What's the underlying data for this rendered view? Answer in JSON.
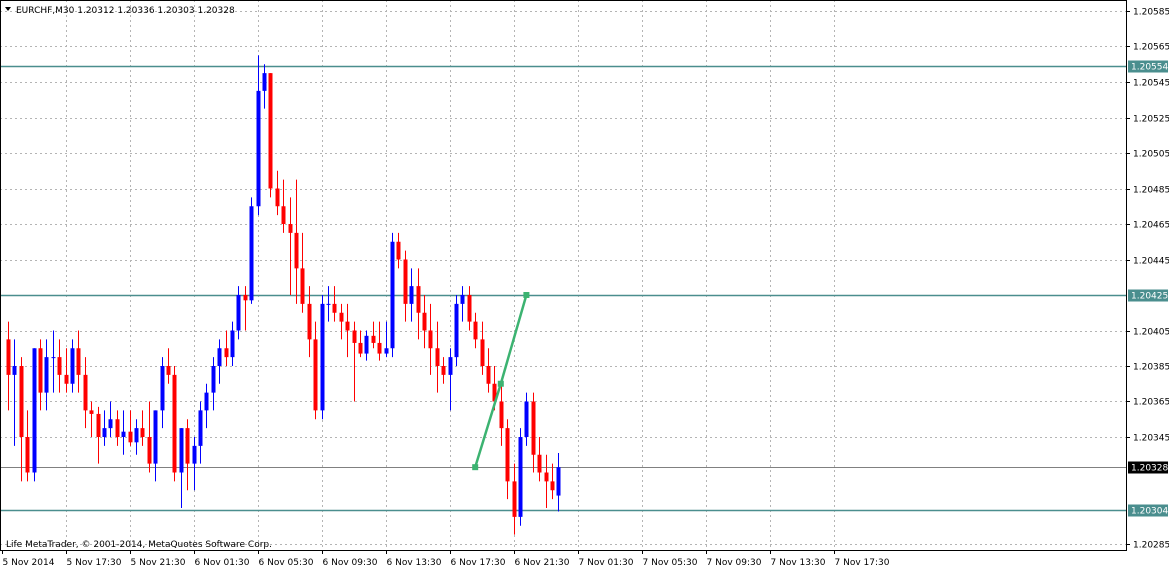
{
  "header": {
    "symbol_title": "EURCHF,M30  1.20312 1.20336 1.20303 1.20328",
    "copyright": "Life MetaTrader, © 2001-2014, MetaQuotes Software Corp."
  },
  "colors": {
    "bull": "#0000ff",
    "bear": "#ff0000",
    "hline": "#4a8e8e",
    "bid_line": "#808080",
    "projection": "#3cb371"
  },
  "chart_data": {
    "type": "candlestick",
    "symbol": "EURCHF",
    "timeframe": "M30",
    "ylim": [
      1.2028,
      1.2059
    ],
    "grid": true,
    "y_ticks": [
      "1.20585",
      "1.20565",
      "1.20545",
      "1.20525",
      "1.20505",
      "1.20485",
      "1.20465",
      "1.20445",
      "1.20425",
      "1.20405",
      "1.20385",
      "1.20365",
      "1.20345",
      "1.20328",
      "1.20304",
      "1.20285"
    ],
    "x_ticks": [
      "5 Nov 2014",
      "5 Nov 17:30",
      "5 Nov 21:30",
      "6 Nov 01:30",
      "6 Nov 05:30",
      "6 Nov 09:30",
      "6 Nov 13:30",
      "6 Nov 17:30",
      "6 Nov 21:30",
      "7 Nov 01:30",
      "7 Nov 05:30",
      "7 Nov 09:30",
      "7 Nov 13:30",
      "7 Nov 17:30"
    ],
    "horizontal_levels": [
      {
        "value": 1.20554,
        "label": "1.20554"
      },
      {
        "value": 1.20425,
        "label": "1.20425"
      },
      {
        "value": 1.20304,
        "label": "1.20304"
      }
    ],
    "bid": {
      "value": 1.20328,
      "label": "1.20328"
    },
    "projection": [
      {
        "bar": 73,
        "price": 1.20328
      },
      {
        "bar": 77,
        "price": 1.20375
      },
      {
        "bar": 81,
        "price": 1.20425
      }
    ],
    "candles": [
      [
        1.204,
        1.2041,
        1.2036,
        1.2038
      ],
      [
        1.2038,
        1.204,
        1.2034,
        1.20385
      ],
      [
        1.20385,
        1.2039,
        1.2032,
        1.20345
      ],
      [
        1.20345,
        1.2036,
        1.2032,
        1.20325
      ],
      [
        1.20325,
        1.20395,
        1.2032,
        1.20395
      ],
      [
        1.20395,
        1.204,
        1.2036,
        1.2037
      ],
      [
        1.2037,
        1.204,
        1.2036,
        1.2039
      ],
      [
        1.2039,
        1.20405,
        1.2037,
        1.2039
      ],
      [
        1.2039,
        1.204,
        1.2037,
        1.2038
      ],
      [
        1.2038,
        1.20395,
        1.2037,
        1.20375
      ],
      [
        1.20375,
        1.204,
        1.2037,
        1.20395
      ],
      [
        1.20395,
        1.20405,
        1.2037,
        1.2038
      ],
      [
        1.2038,
        1.2039,
        1.2035,
        1.2036
      ],
      [
        1.2036,
        1.20365,
        1.20345,
        1.20358
      ],
      [
        1.20358,
        1.20362,
        1.2033,
        1.20345
      ],
      [
        1.20345,
        1.2036,
        1.2034,
        1.2035
      ],
      [
        1.2035,
        1.20365,
        1.20345,
        1.20355
      ],
      [
        1.20355,
        1.2036,
        1.2034,
        1.20345
      ],
      [
        1.20345,
        1.2036,
        1.20335,
        1.20348
      ],
      [
        1.20348,
        1.2036,
        1.2034,
        1.20342
      ],
      [
        1.20342,
        1.20355,
        1.20335,
        1.2035
      ],
      [
        1.2035,
        1.2036,
        1.2034,
        1.20345
      ],
      [
        1.20345,
        1.20365,
        1.20325,
        1.2033
      ],
      [
        1.2033,
        1.2036,
        1.2032,
        1.2036
      ],
      [
        1.2036,
        1.2039,
        1.2035,
        1.20385
      ],
      [
        1.20385,
        1.20395,
        1.20375,
        1.2038
      ],
      [
        1.2038,
        1.20385,
        1.2032,
        1.20325
      ],
      [
        1.20325,
        1.2035,
        1.20305,
        1.2035
      ],
      [
        1.2035,
        1.20355,
        1.20315,
        1.2033
      ],
      [
        1.2033,
        1.20345,
        1.20315,
        1.2034
      ],
      [
        1.2034,
        1.20365,
        1.2033,
        1.2036
      ],
      [
        1.2036,
        1.20375,
        1.2035,
        1.2037
      ],
      [
        1.2037,
        1.2039,
        1.2036,
        1.20385
      ],
      [
        1.20385,
        1.204,
        1.20375,
        1.20395
      ],
      [
        1.20395,
        1.20405,
        1.20385,
        1.2039
      ],
      [
        1.2039,
        1.2041,
        1.20385,
        1.20405
      ],
      [
        1.20405,
        1.2043,
        1.204,
        1.20425
      ],
      [
        1.20425,
        1.2043,
        1.20405,
        1.20422
      ],
      [
        1.20422,
        1.2048,
        1.2042,
        1.20475
      ],
      [
        1.20475,
        1.2056,
        1.2047,
        1.2054
      ],
      [
        1.2054,
        1.20555,
        1.2053,
        1.2055
      ],
      [
        1.2055,
        1.2055,
        1.2048,
        1.20485
      ],
      [
        1.20485,
        1.20495,
        1.2047,
        1.20475
      ],
      [
        1.20475,
        1.2049,
        1.2046,
        1.20465
      ],
      [
        1.20465,
        1.2048,
        1.20425,
        1.2046
      ],
      [
        1.2046,
        1.2049,
        1.2042,
        1.2044
      ],
      [
        1.2044,
        1.2046,
        1.20415,
        1.2042
      ],
      [
        1.2042,
        1.2043,
        1.2039,
        1.204
      ],
      [
        1.204,
        1.2041,
        1.20355,
        1.2036
      ],
      [
        1.2036,
        1.20425,
        1.20355,
        1.2042
      ],
      [
        1.2042,
        1.2043,
        1.2041,
        1.2042
      ],
      [
        1.2042,
        1.2043,
        1.2041,
        1.20415
      ],
      [
        1.20415,
        1.2042,
        1.204,
        1.2041
      ],
      [
        1.2041,
        1.2042,
        1.2039,
        1.20405
      ],
      [
        1.20405,
        1.2041,
        1.20365,
        1.20398
      ],
      [
        1.20398,
        1.20405,
        1.2039,
        1.20392
      ],
      [
        1.20392,
        1.20405,
        1.20388,
        1.20402
      ],
      [
        1.20402,
        1.2041,
        1.20395,
        1.20398
      ],
      [
        1.20398,
        1.2041,
        1.20388,
        1.20392
      ],
      [
        1.20392,
        1.2041,
        1.2039,
        1.20395
      ],
      [
        1.20395,
        1.2046,
        1.2039,
        1.20455
      ],
      [
        1.20455,
        1.2046,
        1.2044,
        1.20445
      ],
      [
        1.20445,
        1.2045,
        1.2041,
        1.2042
      ],
      [
        1.2042,
        1.2044,
        1.2041,
        1.2043
      ],
      [
        1.2043,
        1.2044,
        1.204,
        1.20415
      ],
      [
        1.20415,
        1.20425,
        1.20395,
        1.20405
      ],
      [
        1.20405,
        1.2042,
        1.2038,
        1.20395
      ],
      [
        1.20395,
        1.2041,
        1.2037,
        1.20385
      ],
      [
        1.20385,
        1.2039,
        1.20375,
        1.2038
      ],
      [
        1.2038,
        1.20395,
        1.2036,
        1.2039
      ],
      [
        1.2039,
        1.20425,
        1.20385,
        1.2042
      ],
      [
        1.2042,
        1.2043,
        1.2041,
        1.20425
      ],
      [
        1.20425,
        1.2043,
        1.20405,
        1.2041
      ],
      [
        1.2041,
        1.20415,
        1.20395,
        1.204
      ],
      [
        1.204,
        1.2041,
        1.2038,
        1.20385
      ],
      [
        1.20385,
        1.20395,
        1.2037,
        1.20375
      ],
      [
        1.20375,
        1.20385,
        1.2036,
        1.20365
      ],
      [
        1.20365,
        1.20375,
        1.2034,
        1.2035
      ],
      [
        1.2035,
        1.20355,
        1.2031,
        1.2032
      ],
      [
        1.2032,
        1.2033,
        1.2029,
        1.203
      ],
      [
        1.203,
        1.2035,
        1.20295,
        1.20345
      ],
      [
        1.20345,
        1.2037,
        1.2034,
        1.20365
      ],
      [
        1.20365,
        1.2037,
        1.20325,
        1.20335
      ],
      [
        1.20335,
        1.20345,
        1.2032,
        1.20325
      ],
      [
        1.20325,
        1.20335,
        1.20305,
        1.2032
      ],
      [
        1.2032,
        1.2033,
        1.2031,
        1.20315
      ],
      [
        1.20312,
        1.20336,
        1.20303,
        1.20328
      ]
    ]
  }
}
